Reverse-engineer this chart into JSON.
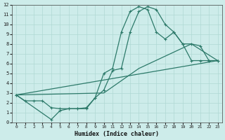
{
  "xlabel": "Humidex (Indice chaleur)",
  "bg_color": "#cdecea",
  "grid_color": "#afd8d4",
  "line_color": "#2d7a6a",
  "xlim": [
    -0.5,
    23.5
  ],
  "ylim": [
    0,
    12
  ],
  "xticks": [
    0,
    1,
    2,
    3,
    4,
    5,
    6,
    7,
    8,
    9,
    10,
    11,
    12,
    13,
    14,
    15,
    16,
    17,
    18,
    19,
    20,
    21,
    22,
    23
  ],
  "yticks": [
    0,
    1,
    2,
    3,
    4,
    5,
    6,
    7,
    8,
    9,
    10,
    11,
    12
  ],
  "line1_x": [
    0,
    1,
    2,
    3,
    4,
    5,
    6,
    7,
    8,
    9,
    10,
    11,
    12,
    13,
    14,
    15,
    16,
    17,
    18,
    19,
    20,
    21,
    22,
    23
  ],
  "line1_y": [
    2.8,
    2.2,
    2.2,
    2.2,
    1.5,
    1.4,
    1.4,
    1.4,
    1.4,
    2.5,
    3.3,
    5.3,
    5.5,
    9.2,
    11.3,
    11.8,
    11.5,
    10.0,
    9.2,
    8.0,
    8.0,
    7.8,
    6.3,
    6.3
  ],
  "line2_x": [
    0,
    4,
    5,
    6,
    7,
    8,
    9,
    10,
    11,
    12,
    13,
    14,
    15,
    16,
    17,
    18,
    19,
    20,
    21,
    22,
    23
  ],
  "line2_y": [
    2.8,
    0.3,
    1.2,
    1.4,
    1.4,
    1.5,
    2.5,
    5.0,
    5.5,
    9.2,
    11.3,
    11.8,
    11.5,
    9.2,
    8.5,
    9.2,
    8.0,
    6.3,
    6.3,
    6.3,
    6.3
  ],
  "line3_x": [
    0,
    23
  ],
  "line3_y": [
    2.8,
    6.3
  ],
  "line4_x": [
    0,
    10,
    14,
    20,
    23
  ],
  "line4_y": [
    2.8,
    3.0,
    5.5,
    8.0,
    6.3
  ],
  "marker_size": 3.5
}
